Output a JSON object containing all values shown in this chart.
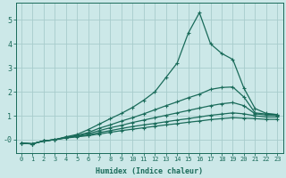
{
  "bg_color": "#cce8e8",
  "grid_color": "#a8cccc",
  "line_color": "#1a6b5a",
  "xlabel": "Humidex (Indice chaleur)",
  "xlim": [
    -0.5,
    23.5
  ],
  "ylim": [
    -0.55,
    5.7
  ],
  "yticks": [
    0,
    1,
    2,
    3,
    4,
    5
  ],
  "ytick_labels": [
    "-0",
    "1",
    "2",
    "3",
    "4",
    "5"
  ],
  "xticks": [
    0,
    1,
    2,
    3,
    4,
    5,
    6,
    7,
    8,
    9,
    10,
    11,
    12,
    13,
    14,
    15,
    16,
    17,
    18,
    19,
    20,
    21,
    22,
    23
  ],
  "lines": [
    {
      "x": [
        0,
        1,
        2,
        3,
        4,
        5,
        6,
        7,
        8,
        9,
        10,
        11,
        12,
        13,
        14,
        15,
        16,
        17,
        18,
        19,
        20,
        21,
        22,
        23
      ],
      "y": [
        -0.15,
        -0.17,
        -0.05,
        0.0,
        0.12,
        0.22,
        0.42,
        0.65,
        0.88,
        1.1,
        1.35,
        1.65,
        2.0,
        2.6,
        3.2,
        4.45,
        5.3,
        4.0,
        3.6,
        3.35,
        2.15,
        1.3,
        1.1,
        1.05
      ]
    },
    {
      "x": [
        0,
        1,
        2,
        3,
        4,
        5,
        6,
        7,
        8,
        9,
        10,
        11,
        12,
        13,
        14,
        15,
        16,
        17,
        18,
        19,
        20,
        21,
        22,
        23
      ],
      "y": [
        -0.15,
        -0.17,
        -0.05,
        0.0,
        0.1,
        0.18,
        0.3,
        0.48,
        0.62,
        0.78,
        0.92,
        1.08,
        1.25,
        1.42,
        1.58,
        1.75,
        1.9,
        2.1,
        2.18,
        2.2,
        1.78,
        1.12,
        1.07,
        1.05
      ]
    },
    {
      "x": [
        0,
        1,
        2,
        3,
        4,
        5,
        6,
        7,
        8,
        9,
        10,
        11,
        12,
        13,
        14,
        15,
        16,
        17,
        18,
        19,
        20,
        21,
        22,
        23
      ],
      "y": [
        -0.15,
        -0.17,
        -0.05,
        0.0,
        0.1,
        0.16,
        0.25,
        0.38,
        0.5,
        0.6,
        0.72,
        0.82,
        0.92,
        1.02,
        1.12,
        1.22,
        1.32,
        1.42,
        1.5,
        1.55,
        1.42,
        1.08,
        1.03,
        1.02
      ]
    },
    {
      "x": [
        0,
        1,
        2,
        3,
        4,
        5,
        6,
        7,
        8,
        9,
        10,
        11,
        12,
        13,
        14,
        15,
        16,
        17,
        18,
        19,
        20,
        21,
        22,
        23
      ],
      "y": [
        -0.15,
        -0.17,
        -0.05,
        0.0,
        0.08,
        0.14,
        0.2,
        0.3,
        0.38,
        0.47,
        0.55,
        0.62,
        0.68,
        0.75,
        0.82,
        0.88,
        0.95,
        1.02,
        1.07,
        1.12,
        1.08,
        1.0,
        0.95,
        0.95
      ]
    },
    {
      "x": [
        0,
        1,
        2,
        3,
        4,
        5,
        6,
        7,
        8,
        9,
        10,
        11,
        12,
        13,
        14,
        15,
        16,
        17,
        18,
        19,
        20,
        21,
        22,
        23
      ],
      "y": [
        -0.15,
        -0.17,
        -0.05,
        0.0,
        0.07,
        0.12,
        0.17,
        0.24,
        0.31,
        0.38,
        0.44,
        0.5,
        0.56,
        0.62,
        0.67,
        0.73,
        0.78,
        0.84,
        0.88,
        0.92,
        0.9,
        0.88,
        0.85,
        0.85
      ]
    }
  ]
}
